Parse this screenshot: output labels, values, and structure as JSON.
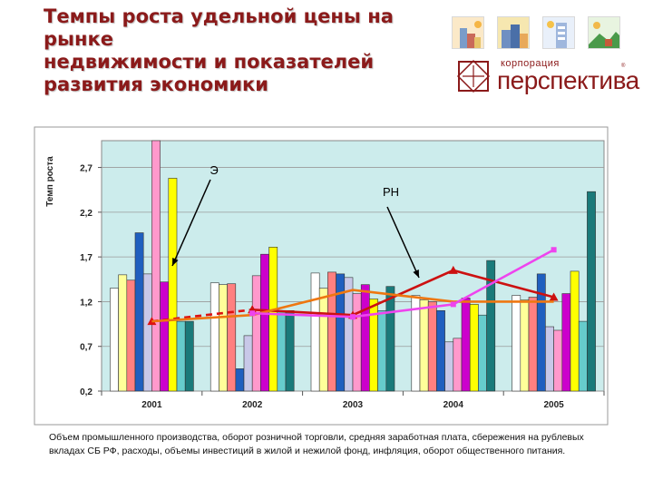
{
  "title_lines": [
    "Темпы роста удельной цены на",
    "рынке",
    "недвижимости и показателей",
    "развития экономики"
  ],
  "logo": {
    "top_text": "корпорация",
    "main_text": "перспектива",
    "reg_mark": "®",
    "tile_icons": [
      "city-tile-icon",
      "buildings-tile-icon",
      "tower-tile-icon",
      "hills-tile-icon"
    ]
  },
  "caption": "Объем промышленного производства, оборот розничной торговли, средняя заработная плата, сбережения на рублевых вкладах СБ РФ, расходы, объемы инвестиций в жилой и нежилой фонд, инфляция, оборот общественного питания.",
  "chart_data": {
    "type": "bar",
    "ylabel": "Темп роста",
    "ylim": [
      0.2,
      3.0
    ],
    "yticks": [
      "0,2",
      "0,7",
      "1,2",
      "1,7",
      "2,2",
      "2,7"
    ],
    "ytick_values": [
      0.2,
      0.7,
      1.2,
      1.7,
      2.2,
      2.7
    ],
    "categories": [
      "2001",
      "2002",
      "2003",
      "2004",
      "2005"
    ],
    "grid": true,
    "bar_series": [
      {
        "name": "s1",
        "color": "#ffffff",
        "values": [
          1.35,
          1.41,
          1.52,
          1.27,
          1.27
        ]
      },
      {
        "name": "s2",
        "color": "#ffff99",
        "values": [
          1.5,
          1.39,
          1.35,
          1.22,
          1.22
        ]
      },
      {
        "name": "s3",
        "color": "#ff8080",
        "values": [
          1.44,
          1.4,
          1.53,
          1.2,
          1.25
        ]
      },
      {
        "name": "s4",
        "color": "#1f5fbf",
        "values": [
          1.97,
          0.45,
          1.51,
          1.1,
          1.51
        ]
      },
      {
        "name": "s5",
        "color": "#c8c8e8",
        "values": [
          1.51,
          0.82,
          1.47,
          0.75,
          0.92
        ]
      },
      {
        "name": "s6",
        "color": "#ff99cc",
        "values": [
          3.0,
          1.49,
          1.29,
          0.79,
          0.88
        ]
      },
      {
        "name": "s7",
        "color": "#cc00cc",
        "values": [
          1.42,
          1.73,
          1.39,
          1.24,
          1.29
        ]
      },
      {
        "name": "s8",
        "color": "#ffff00",
        "values": [
          2.58,
          1.81,
          1.23,
          1.17,
          1.54
        ]
      },
      {
        "name": "s9",
        "color": "#66cccc",
        "values": [
          0.98,
          1.1,
          1.1,
          1.05,
          0.98
        ]
      },
      {
        "name": "s10",
        "color": "#1a7a7a",
        "values": [
          0.98,
          1.1,
          1.37,
          1.66,
          2.43
        ]
      }
    ],
    "line_series": [
      {
        "name": "Э",
        "color": "#dd1111",
        "style": "dashed",
        "marker": "triangle",
        "values": [
          0.98,
          1.11,
          null,
          null,
          null
        ]
      },
      {
        "name": "red",
        "color": "#cc1111",
        "style": "solid",
        "marker": "triangle",
        "values": [
          null,
          1.11,
          1.05,
          1.55,
          1.25
        ]
      },
      {
        "name": "orange",
        "color": "#ee7711",
        "style": "solid",
        "marker": "none",
        "values": [
          0.98,
          1.05,
          1.33,
          1.2,
          1.2
        ]
      },
      {
        "name": "РН",
        "color": "#ee44ee",
        "style": "solid",
        "marker": "square",
        "values": [
          null,
          1.07,
          1.03,
          1.17,
          1.78
        ]
      }
    ],
    "annotations": [
      {
        "text": "Э",
        "target_series": "s6",
        "target_category": "2001"
      },
      {
        "text": "РН",
        "target_series": "red",
        "target_category": "2004"
      }
    ]
  }
}
